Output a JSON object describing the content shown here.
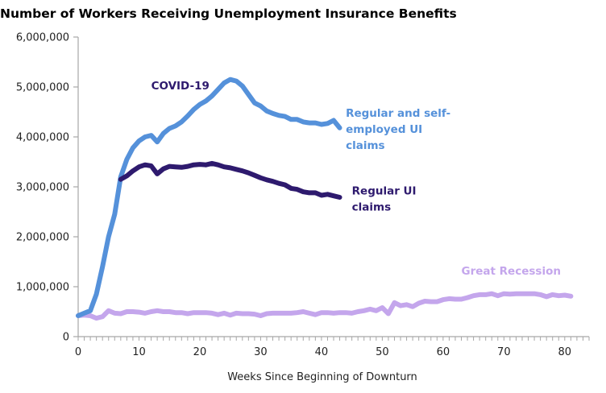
{
  "chart_data": {
    "type": "line",
    "title": "Number of Workers Receiving Unemployment Insurance Benefits",
    "xlabel": "Weeks Since Beginning of Downturn",
    "ylabel": "",
    "xlim": [
      0,
      84
    ],
    "ylim": [
      0,
      6000000
    ],
    "xticks": [
      0,
      10,
      20,
      30,
      40,
      50,
      60,
      70,
      80
    ],
    "xtick_labels": [
      "0",
      "10",
      "20",
      "30",
      "40",
      "50",
      "60",
      "70",
      "80"
    ],
    "yticks": [
      0,
      1000000,
      2000000,
      3000000,
      4000000,
      5000000,
      6000000
    ],
    "ytick_labels": [
      "0",
      "1,000,000",
      "2,000,000",
      "3,000,000",
      "4,000,000",
      "5,000,000",
      "6,000,000"
    ],
    "grid": false,
    "legend": "none (direct labels)",
    "series": [
      {
        "name": "Great Recession",
        "color": "#C4A6EC",
        "x_start": 0,
        "values": [
          420000,
          430000,
          420000,
          370000,
          400000,
          520000,
          470000,
          460000,
          500000,
          500000,
          490000,
          470000,
          500000,
          520000,
          500000,
          500000,
          480000,
          480000,
          460000,
          480000,
          480000,
          480000,
          470000,
          440000,
          470000,
          430000,
          470000,
          460000,
          460000,
          450000,
          420000,
          460000,
          470000,
          470000,
          470000,
          470000,
          480000,
          500000,
          470000,
          440000,
          480000,
          480000,
          470000,
          480000,
          480000,
          470000,
          500000,
          520000,
          550000,
          520000,
          580000,
          460000,
          680000,
          620000,
          640000,
          600000,
          670000,
          710000,
          700000,
          700000,
          740000,
          760000,
          750000,
          750000,
          780000,
          820000,
          840000,
          840000,
          860000,
          820000,
          860000,
          850000,
          860000,
          860000,
          860000,
          860000,
          840000,
          800000,
          840000,
          820000,
          830000,
          810000
        ]
      },
      {
        "name": "Regular and self-employed UI claims",
        "color": "#5591DA",
        "x_start": 0,
        "values": [
          420000,
          470000,
          520000,
          850000,
          1400000,
          2000000,
          2450000,
          3200000,
          3550000,
          3780000,
          3920000,
          4000000,
          4030000,
          3900000,
          4070000,
          4170000,
          4220000,
          4300000,
          4420000,
          4550000,
          4650000,
          4720000,
          4820000,
          4950000,
          5080000,
          5150000,
          5120000,
          5020000,
          4850000,
          4680000,
          4620000,
          4520000,
          4470000,
          4430000,
          4410000,
          4350000,
          4350000,
          4300000,
          4280000,
          4280000,
          4250000,
          4270000,
          4330000,
          4180000
        ]
      },
      {
        "name": "Regular UI claims",
        "color": "#2E1A6E",
        "x_start": 7,
        "values": [
          3150000,
          3220000,
          3320000,
          3400000,
          3440000,
          3420000,
          3260000,
          3360000,
          3410000,
          3400000,
          3390000,
          3410000,
          3440000,
          3450000,
          3440000,
          3470000,
          3440000,
          3400000,
          3380000,
          3350000,
          3320000,
          3280000,
          3230000,
          3180000,
          3140000,
          3110000,
          3070000,
          3040000,
          2970000,
          2950000,
          2900000,
          2880000,
          2880000,
          2830000,
          2850000,
          2820000,
          2790000
        ]
      }
    ],
    "annotations": [
      {
        "text": "COVID-19",
        "color": "#2E1A6E",
        "at": [
          12,
          4950000
        ]
      },
      {
        "text_lines": [
          "Regular and self-",
          "employed UI",
          "claims"
        ],
        "color": "#5591DA",
        "at": [
          44,
          4400000
        ]
      },
      {
        "text_lines": [
          "Regular UI",
          "claims"
        ],
        "color": "#2E1A6E",
        "at": [
          45,
          2850000
        ]
      },
      {
        "text": "Great Recession",
        "color": "#C4A6EC",
        "at": [
          63,
          1240000
        ]
      }
    ]
  }
}
